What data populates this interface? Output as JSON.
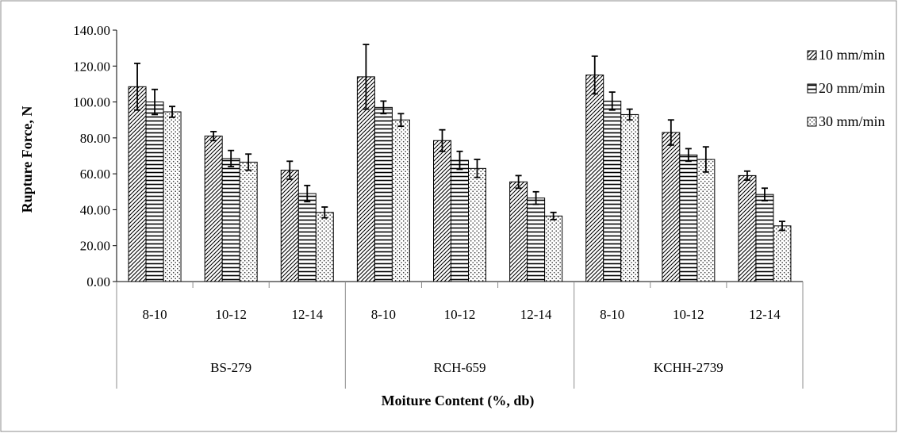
{
  "chart_data": {
    "type": "bar",
    "title": "",
    "ylabel": "Rupture Force, N",
    "xlabel": "Moiture Content (%, db)",
    "ylim": [
      0,
      140
    ],
    "ytick_step": 20,
    "ytick_labels": [
      "0.00",
      "20.00",
      "40.00",
      "60.00",
      "80.00",
      "100.00",
      "120.00",
      "140.00"
    ],
    "grid": false,
    "legend_position": "top-right",
    "groups": [
      {
        "name": "BS-279",
        "categories": [
          "8-10",
          "10-12",
          "12-14"
        ]
      },
      {
        "name": "RCH-659",
        "categories": [
          "8-10",
          "10-12",
          "12-14"
        ]
      },
      {
        "name": "KCHH-2739",
        "categories": [
          "8-10",
          "10-12",
          "12-14"
        ]
      }
    ],
    "series": [
      {
        "name": "10 mm/min",
        "pattern": "diagonal-hatch",
        "values": [
          108.5,
          81.0,
          62.0,
          114.0,
          78.5,
          55.5,
          115.0,
          83.0,
          59.0
        ],
        "errors": [
          13.0,
          2.5,
          5.0,
          18.0,
          6.0,
          3.5,
          10.5,
          7.0,
          2.5
        ]
      },
      {
        "name": "20 mm/min",
        "pattern": "horizontal-lines",
        "values": [
          100.0,
          68.5,
          49.0,
          97.0,
          67.5,
          46.5,
          100.5,
          70.5,
          48.5
        ],
        "errors": [
          7.0,
          4.5,
          4.5,
          3.5,
          5.0,
          3.5,
          5.0,
          3.5,
          3.5
        ]
      },
      {
        "name": "30 mm/min",
        "pattern": "dots",
        "values": [
          94.5,
          66.5,
          38.5,
          90.0,
          63.0,
          36.5,
          93.0,
          68.0,
          31.0
        ],
        "errors": [
          3.0,
          4.5,
          3.0,
          3.5,
          5.0,
          2.0,
          3.0,
          7.0,
          2.5
        ]
      }
    ]
  }
}
